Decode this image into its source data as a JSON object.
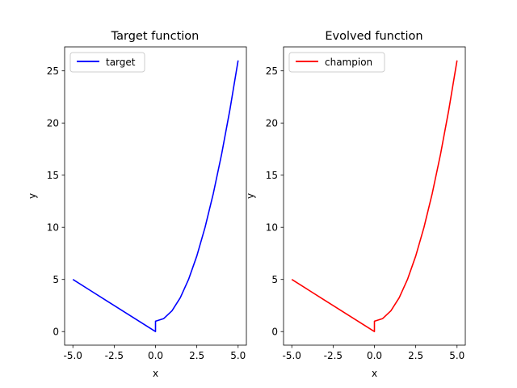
{
  "chart_data": [
    {
      "type": "line",
      "title": "Target function",
      "xlabel": "x",
      "ylabel": "y",
      "xlim": [
        -5.5,
        5.5
      ],
      "ylim": [
        -1.3,
        27.3
      ],
      "xticks": [
        "-5.0",
        "-2.5",
        "0.0",
        "2.5",
        "5.0"
      ],
      "xtick_values": [
        -5,
        -2.5,
        0,
        2.5,
        5
      ],
      "yticks": [
        "0",
        "5",
        "10",
        "15",
        "20",
        "25"
      ],
      "ytick_values": [
        0,
        5,
        10,
        15,
        20,
        25
      ],
      "legend": "upper left",
      "series": [
        {
          "name": "target",
          "color": "#0000ff",
          "x": [
            -5,
            -4,
            -3,
            -2,
            -1,
            0,
            0.001,
            0.5,
            1,
            1.5,
            2,
            2.5,
            3,
            3.5,
            4,
            4.5,
            5
          ],
          "y": [
            5,
            4,
            3,
            2,
            1,
            0,
            1,
            1.25,
            2,
            3.25,
            5,
            7.25,
            10,
            13.25,
            17,
            21.25,
            26
          ]
        }
      ]
    },
    {
      "type": "line",
      "title": "Evolved function",
      "xlabel": "x",
      "ylabel": "y",
      "xlim": [
        -5.5,
        5.5
      ],
      "ylim": [
        -1.3,
        27.3
      ],
      "xticks": [
        "-5.0",
        "-2.5",
        "0.0",
        "2.5",
        "5.0"
      ],
      "xtick_values": [
        -5,
        -2.5,
        0,
        2.5,
        5
      ],
      "yticks": [
        "0",
        "5",
        "10",
        "15",
        "20",
        "25"
      ],
      "ytick_values": [
        0,
        5,
        10,
        15,
        20,
        25
      ],
      "legend": "upper left",
      "series": [
        {
          "name": "champion",
          "color": "#ff0000",
          "x": [
            -5,
            -4,
            -3,
            -2,
            -1,
            0,
            0.001,
            0.5,
            1,
            1.5,
            2,
            2.5,
            3,
            3.5,
            4,
            4.5,
            5
          ],
          "y": [
            5,
            4,
            3,
            2,
            1,
            0,
            1,
            1.25,
            2,
            3.25,
            5,
            7.25,
            10,
            13.25,
            17,
            21.25,
            26
          ]
        }
      ]
    }
  ]
}
